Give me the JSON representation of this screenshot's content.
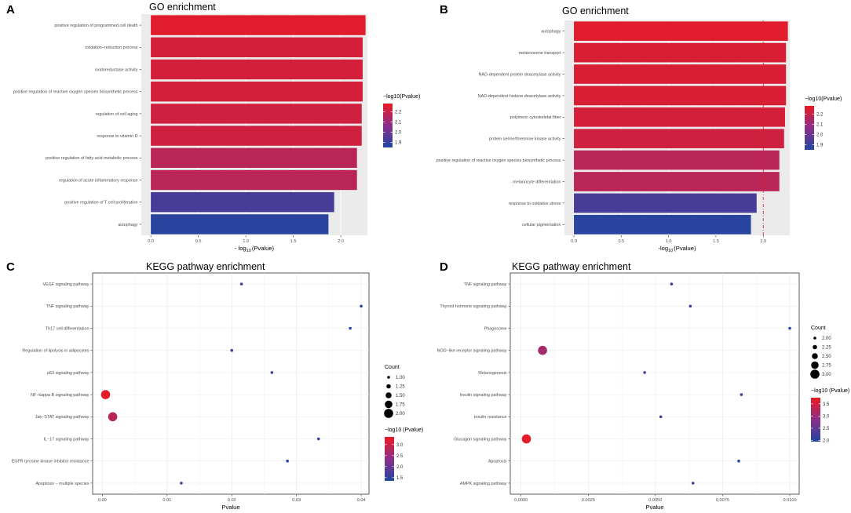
{
  "chart_data": [
    {
      "panel": "A",
      "type": "bar",
      "orientation": "horizontal",
      "title": "GO enrichment",
      "xlabel": "- log10 (Pvalue)",
      "xlabel_parts": [
        "- log",
        "10",
        "(Pvalue)"
      ],
      "xlim": [
        -0.1,
        2.28
      ],
      "xticks": [
        0.0,
        0.5,
        1.0,
        1.5,
        2.0
      ],
      "xtick_labels": [
        "0.0",
        "0.5",
        "1.0",
        "1.5",
        "2.0"
      ],
      "categories": [
        "positive regulation of programmed cell death",
        "oxidation−reduction process",
        "oxidoreductase activity",
        "positive regulation of reactive oxygen species biosynthetic process",
        "regulation of cell aging",
        "response to vitamin D",
        "positive regulation of fatty acid metabolic process",
        "regulation of acute inflammatory response",
        "positive regulation of T cell proliferation",
        "autophagy"
      ],
      "values": [
        2.26,
        2.23,
        2.23,
        2.23,
        2.22,
        2.22,
        2.17,
        2.17,
        1.93,
        1.87
      ],
      "reference_line": null,
      "legend": {
        "title": "−log10(Pvalue)",
        "range": [
          1.85,
          2.28
        ],
        "ticks": [
          1.9,
          2.0,
          2.1,
          2.2
        ],
        "tick_labels": [
          "1.9",
          "2.0",
          "2.1",
          "2.2"
        ],
        "low_color": "#1f46a0",
        "high_color": "#ea1a22"
      }
    },
    {
      "panel": "B",
      "type": "bar",
      "orientation": "horizontal",
      "title": "GO enrichment",
      "xlabel": "-log10 (Pvalue)",
      "xlabel_parts": [
        "-log",
        "10",
        "(Pvalue)"
      ],
      "xlim": [
        -0.1,
        2.28
      ],
      "xticks": [
        0.0,
        0.5,
        1.0,
        1.5,
        2.0
      ],
      "xtick_labels": [
        "0.0",
        "0.5",
        "1.0",
        "1.5",
        "2.0"
      ],
      "categories": [
        "autophagy",
        "melanosome transport",
        "NAD-dependent protein deacetylase activity",
        "NAD-dependent histone deacetylase activity",
        "polymeric cytoskeletal fiber",
        "protein serine/threonine kinase activity",
        "positive regulation of reactive oxygen species biosynthetic process",
        "melanocyte differentiation",
        "response to oxidative stress",
        "cellular pigmentation"
      ],
      "values": [
        2.26,
        2.24,
        2.24,
        2.24,
        2.23,
        2.22,
        2.17,
        2.17,
        1.93,
        1.87
      ],
      "reference_line": 2.0,
      "legend": {
        "title": "−log10(Pvalue)",
        "range": [
          1.85,
          2.28
        ],
        "ticks": [
          1.9,
          2.0,
          2.1,
          2.2
        ],
        "tick_labels": [
          "1.9",
          "2.0",
          "2.1",
          "2.2"
        ],
        "low_color": "#1f46a0",
        "high_color": "#ea1a22"
      }
    },
    {
      "panel": "C",
      "type": "scatter",
      "title": "KEGG pathway enrichment",
      "xlabel": "Pvalue",
      "xlim": [
        -0.0015,
        0.0412
      ],
      "xticks": [
        0.0,
        0.01,
        0.02,
        0.03,
        0.04
      ],
      "xtick_labels": [
        "0.00",
        "0.01",
        "0.02",
        "0.03",
        "0.04"
      ],
      "categories": [
        "VEGF signaling pathway",
        "TNF signaling pathway",
        "Th17 cell differentiation",
        "Regulation of lipolysis in adipocytes",
        "p53 signaling pathway",
        "NF−kappa B signaling pathway",
        "Jak−STAT signaling pathway",
        "IL−17 signaling pathway",
        "EGFR tyrosine kinase inhibitor resistance",
        "Apoptosis − multiple species"
      ],
      "x": [
        0.0215,
        0.04,
        0.0383,
        0.02,
        0.0262,
        0.0005,
        0.0016,
        0.0334,
        0.0286,
        0.0122
      ],
      "count": [
        1,
        1,
        1,
        1,
        1,
        2,
        2,
        1,
        1,
        1
      ],
      "neglog10p": [
        1.67,
        1.4,
        1.42,
        1.7,
        1.58,
        3.3,
        2.8,
        1.48,
        1.54,
        1.91
      ],
      "size_legend": {
        "title": "Count",
        "values": [
          1.0,
          1.25,
          1.5,
          1.75,
          2.0
        ],
        "labels": [
          "1.00",
          "1.25",
          "1.50",
          "1.75",
          "2.00"
        ]
      },
      "color_legend": {
        "title": "−log10 (Pvalue)",
        "range": [
          1.35,
          3.35
        ],
        "ticks": [
          1.5,
          2.0,
          2.5,
          3.0
        ],
        "tick_labels": [
          "1.5",
          "2.0",
          "2.5",
          "3.0"
        ],
        "low_color": "#1f46a0",
        "high_color": "#ea1a22"
      }
    },
    {
      "panel": "D",
      "type": "scatter",
      "title": "KEGG pathway enrichment",
      "xlabel": "Pvalue",
      "xlim": [
        -0.0004,
        0.01035
      ],
      "xticks": [
        0.0,
        0.0025,
        0.005,
        0.0075,
        0.01
      ],
      "xtick_labels": [
        "0.0000",
        "0.0025",
        "0.0050",
        "0.0075",
        "0.0100"
      ],
      "categories": [
        "TNF signaling pathway",
        "Thyroid hormone signaling pathway",
        "Phagosome",
        "NOD−like receptor signaling pathway",
        "Melanogenesis",
        "Insulin signaling pathway",
        "Insulin resistance",
        "Glucagon signaling pathway",
        "Apoptosis",
        "AMPK signaling pathway"
      ],
      "x": [
        0.0056,
        0.0063,
        0.01,
        0.0008,
        0.0046,
        0.0082,
        0.0052,
        0.0002,
        0.0081,
        0.0064
      ],
      "count": [
        2,
        2,
        2,
        3,
        2,
        2,
        2,
        3,
        2,
        2
      ],
      "neglog10p": [
        2.25,
        2.2,
        2.0,
        3.1,
        2.34,
        2.09,
        2.28,
        3.7,
        2.09,
        2.19
      ],
      "size_legend": {
        "title": "Count",
        "values": [
          2.0,
          2.25,
          2.5,
          2.75,
          3.0
        ],
        "labels": [
          "2.00",
          "2.25",
          "2.50",
          "2.75",
          "3.00"
        ]
      },
      "color_legend": {
        "title": "−log10 (Pvalue)",
        "range": [
          1.95,
          3.75
        ],
        "ticks": [
          2.0,
          2.5,
          3.0,
          3.5
        ],
        "tick_labels": [
          "2.0",
          "2.5",
          "3.0",
          "3.5"
        ],
        "low_color": "#1f46a0",
        "high_color": "#ea1a22"
      }
    }
  ]
}
